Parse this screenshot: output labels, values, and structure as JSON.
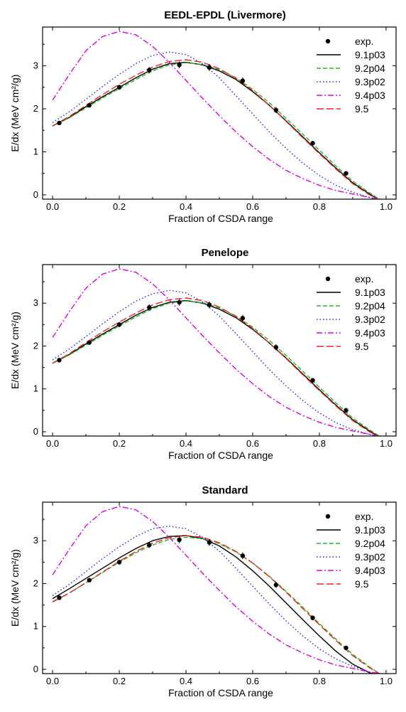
{
  "chart_data": [
    {
      "type": "line",
      "title": "EEDL-EPDL (Livermore)",
      "xlabel": "Fraction of CSDA range",
      "ylabel": "E/dx (MeV cm²/g)",
      "xlim": [
        -0.03,
        1.03
      ],
      "ylim": [
        -0.1,
        3.9
      ],
      "x_ticks": [
        "0.0",
        "0.2",
        "0.4",
        "0.6",
        "0.8",
        "1.0"
      ],
      "y_ticks": [
        "0",
        "1",
        "2",
        "3"
      ],
      "legend_position": "top-right",
      "experimental": {
        "name": "exp.",
        "x": [
          0.02,
          0.11,
          0.2,
          0.29,
          0.38,
          0.47,
          0.57,
          0.67,
          0.78,
          0.88
        ],
        "y": [
          1.67,
          2.08,
          2.5,
          2.9,
          3.02,
          2.96,
          2.65,
          1.97,
          1.2,
          0.5
        ],
        "err": [
          0.04,
          0.04,
          0.06,
          0.07,
          0.08,
          0.08,
          0.08,
          0.07,
          0.05,
          0.04
        ]
      },
      "series": [
        {
          "name": "9.1p03",
          "color": "#000000",
          "dash": "solid",
          "x": [
            0,
            0.05,
            0.1,
            0.15,
            0.2,
            0.25,
            0.3,
            0.35,
            0.4,
            0.45,
            0.5,
            0.55,
            0.6,
            0.65,
            0.7,
            0.75,
            0.8,
            0.85,
            0.9,
            0.95,
            0.98
          ],
          "y": [
            1.6,
            1.8,
            2.05,
            2.28,
            2.5,
            2.72,
            2.92,
            3.05,
            3.08,
            3.02,
            2.88,
            2.68,
            2.4,
            2.08,
            1.72,
            1.35,
            0.98,
            0.62,
            0.28,
            0.02,
            -0.12
          ]
        },
        {
          "name": "9.2p04",
          "color": "#22bb22",
          "dash": "dashed",
          "x": [
            0,
            0.05,
            0.1,
            0.15,
            0.2,
            0.25,
            0.3,
            0.35,
            0.4,
            0.45,
            0.5,
            0.55,
            0.6,
            0.65,
            0.7,
            0.75,
            0.8,
            0.85,
            0.9,
            0.95,
            0.98
          ],
          "y": [
            1.6,
            1.79,
            2.02,
            2.25,
            2.47,
            2.68,
            2.88,
            3.02,
            3.07,
            3.03,
            2.91,
            2.72,
            2.45,
            2.14,
            1.78,
            1.41,
            1.04,
            0.67,
            0.32,
            0.05,
            -0.1
          ]
        },
        {
          "name": "9.3p02",
          "color": "#2222dd",
          "dash": "dotted",
          "x": [
            0,
            0.05,
            0.1,
            0.15,
            0.2,
            0.25,
            0.3,
            0.35,
            0.4,
            0.45,
            0.5,
            0.55,
            0.6,
            0.65,
            0.7,
            0.75,
            0.8,
            0.85,
            0.9,
            0.95,
            0.98
          ],
          "y": [
            1.68,
            1.93,
            2.22,
            2.52,
            2.8,
            3.05,
            3.24,
            3.32,
            3.26,
            3.05,
            2.72,
            2.3,
            1.88,
            1.46,
            1.08,
            0.74,
            0.45,
            0.22,
            0.06,
            -0.06,
            -0.12
          ]
        },
        {
          "name": "9.4p03",
          "color": "#dd00dd",
          "dash": "dashdot",
          "x": [
            0,
            0.05,
            0.1,
            0.15,
            0.2,
            0.25,
            0.3,
            0.35,
            0.4,
            0.45,
            0.5,
            0.55,
            0.6,
            0.65,
            0.7,
            0.75,
            0.8,
            0.85,
            0.9,
            0.95,
            1.0
          ],
          "y": [
            2.2,
            2.8,
            3.35,
            3.68,
            3.8,
            3.72,
            3.45,
            3.08,
            2.66,
            2.24,
            1.84,
            1.46,
            1.12,
            0.82,
            0.57,
            0.38,
            0.22,
            0.1,
            0.02,
            -0.06,
            -0.12
          ]
        },
        {
          "name": "9.5",
          "color": "#ee2222",
          "dash": "longdash",
          "x": [
            0,
            0.05,
            0.1,
            0.15,
            0.2,
            0.25,
            0.3,
            0.35,
            0.4,
            0.45,
            0.5,
            0.55,
            0.6,
            0.65,
            0.7,
            0.75,
            0.8,
            0.85,
            0.9,
            0.95,
            0.98
          ],
          "y": [
            1.6,
            1.82,
            2.08,
            2.33,
            2.57,
            2.78,
            2.97,
            3.1,
            3.14,
            3.08,
            2.93,
            2.71,
            2.42,
            2.08,
            1.71,
            1.33,
            0.96,
            0.6,
            0.26,
            0.0,
            -0.12
          ]
        }
      ]
    },
    {
      "type": "line",
      "title": "Penelope",
      "xlabel": "Fraction of CSDA range",
      "ylabel": "E/dx (MeV cm²/g)",
      "xlim": [
        -0.03,
        1.03
      ],
      "ylim": [
        -0.1,
        3.9
      ],
      "x_ticks": [
        "0.0",
        "0.2",
        "0.4",
        "0.6",
        "0.8",
        "1.0"
      ],
      "y_ticks": [
        "0",
        "1",
        "2",
        "3"
      ],
      "legend_position": "top-right",
      "experimental": {
        "name": "exp.",
        "x": [
          0.02,
          0.11,
          0.2,
          0.29,
          0.38,
          0.47,
          0.57,
          0.67,
          0.78,
          0.88
        ],
        "y": [
          1.67,
          2.08,
          2.5,
          2.9,
          3.02,
          2.96,
          2.65,
          1.97,
          1.2,
          0.5
        ],
        "err": [
          0.04,
          0.04,
          0.06,
          0.07,
          0.08,
          0.08,
          0.08,
          0.07,
          0.05,
          0.04
        ]
      },
      "series": [
        {
          "name": "9.1p03",
          "color": "#000000",
          "dash": "solid",
          "x": [
            0,
            0.05,
            0.1,
            0.15,
            0.2,
            0.25,
            0.3,
            0.35,
            0.4,
            0.45,
            0.5,
            0.55,
            0.6,
            0.65,
            0.7,
            0.75,
            0.8,
            0.85,
            0.9,
            0.95,
            0.98
          ],
          "y": [
            1.6,
            1.8,
            2.05,
            2.28,
            2.5,
            2.72,
            2.9,
            3.02,
            3.06,
            3.0,
            2.86,
            2.66,
            2.39,
            2.07,
            1.72,
            1.35,
            0.98,
            0.62,
            0.28,
            0.02,
            -0.12
          ]
        },
        {
          "name": "9.2p04",
          "color": "#22bb22",
          "dash": "dashed",
          "x": [
            0,
            0.05,
            0.1,
            0.15,
            0.2,
            0.25,
            0.3,
            0.35,
            0.4,
            0.45,
            0.5,
            0.55,
            0.6,
            0.65,
            0.7,
            0.75,
            0.8,
            0.85,
            0.9,
            0.95,
            0.98
          ],
          "y": [
            1.6,
            1.79,
            2.02,
            2.25,
            2.47,
            2.68,
            2.87,
            3.0,
            3.05,
            3.01,
            2.89,
            2.7,
            2.44,
            2.13,
            1.78,
            1.41,
            1.04,
            0.67,
            0.32,
            0.05,
            -0.1
          ]
        },
        {
          "name": "9.3p02",
          "color": "#2222dd",
          "dash": "dotted",
          "x": [
            0,
            0.05,
            0.1,
            0.15,
            0.2,
            0.25,
            0.3,
            0.35,
            0.4,
            0.45,
            0.5,
            0.55,
            0.6,
            0.65,
            0.7,
            0.75,
            0.8,
            0.85,
            0.9,
            0.95,
            0.98
          ],
          "y": [
            1.68,
            1.93,
            2.22,
            2.52,
            2.8,
            3.05,
            3.22,
            3.3,
            3.24,
            3.03,
            2.7,
            2.29,
            1.87,
            1.45,
            1.07,
            0.73,
            0.44,
            0.21,
            0.05,
            -0.06,
            -0.12
          ]
        },
        {
          "name": "9.4p03",
          "color": "#dd00dd",
          "dash": "dashdot",
          "x": [
            0,
            0.05,
            0.1,
            0.15,
            0.2,
            0.25,
            0.3,
            0.35,
            0.4,
            0.45,
            0.5,
            0.55,
            0.6,
            0.65,
            0.7,
            0.75,
            0.8,
            0.85,
            0.9,
            0.95,
            1.0
          ],
          "y": [
            2.2,
            2.8,
            3.35,
            3.68,
            3.8,
            3.72,
            3.45,
            3.08,
            2.66,
            2.24,
            1.84,
            1.46,
            1.12,
            0.82,
            0.57,
            0.38,
            0.22,
            0.1,
            0.02,
            -0.06,
            -0.12
          ]
        },
        {
          "name": "9.5",
          "color": "#ee2222",
          "dash": "longdash",
          "x": [
            0,
            0.05,
            0.1,
            0.15,
            0.2,
            0.25,
            0.3,
            0.35,
            0.4,
            0.45,
            0.5,
            0.55,
            0.6,
            0.65,
            0.7,
            0.75,
            0.8,
            0.85,
            0.9,
            0.95,
            0.98
          ],
          "y": [
            1.6,
            1.82,
            2.08,
            2.33,
            2.56,
            2.77,
            2.96,
            3.08,
            3.12,
            3.06,
            2.91,
            2.69,
            2.41,
            2.07,
            1.71,
            1.33,
            0.96,
            0.6,
            0.26,
            0.0,
            -0.12
          ]
        }
      ]
    },
    {
      "type": "line",
      "title": "Standard",
      "xlabel": "Fraction of CSDA range",
      "ylabel": "E/dx (MeV cm²/g)",
      "xlim": [
        -0.03,
        1.03
      ],
      "ylim": [
        -0.1,
        3.9
      ],
      "x_ticks": [
        "0.0",
        "0.2",
        "0.4",
        "0.6",
        "0.8",
        "1.0"
      ],
      "y_ticks": [
        "0",
        "1",
        "2",
        "3"
      ],
      "legend_position": "top-right",
      "experimental": {
        "name": "exp.",
        "x": [
          0.02,
          0.11,
          0.2,
          0.29,
          0.38,
          0.47,
          0.57,
          0.67,
          0.78,
          0.88
        ],
        "y": [
          1.67,
          2.08,
          2.5,
          2.9,
          3.02,
          2.96,
          2.65,
          1.97,
          1.2,
          0.5
        ],
        "err": [
          0.04,
          0.04,
          0.06,
          0.07,
          0.08,
          0.08,
          0.08,
          0.07,
          0.05,
          0.04
        ]
      },
      "series": [
        {
          "name": "9.1p03",
          "color": "#000000",
          "dash": "solid",
          "x": [
            0,
            0.05,
            0.1,
            0.15,
            0.2,
            0.25,
            0.3,
            0.35,
            0.4,
            0.45,
            0.5,
            0.55,
            0.6,
            0.65,
            0.7,
            0.75,
            0.8,
            0.85,
            0.9,
            0.95,
            0.97
          ],
          "y": [
            1.65,
            1.88,
            2.12,
            2.36,
            2.6,
            2.82,
            3.0,
            3.1,
            3.12,
            3.05,
            2.88,
            2.62,
            2.3,
            1.94,
            1.55,
            1.16,
            0.78,
            0.42,
            0.12,
            -0.08,
            -0.12
          ]
        },
        {
          "name": "9.2p04",
          "color": "#22bb22",
          "dash": "dashed",
          "x": [
            0,
            0.05,
            0.1,
            0.15,
            0.2,
            0.25,
            0.3,
            0.35,
            0.4,
            0.45,
            0.5,
            0.55,
            0.6,
            0.65,
            0.7,
            0.75,
            0.8,
            0.85,
            0.9,
            0.95,
            0.98
          ],
          "y": [
            1.58,
            1.78,
            2.02,
            2.26,
            2.5,
            2.72,
            2.9,
            3.03,
            3.08,
            3.05,
            2.93,
            2.74,
            2.48,
            2.17,
            1.82,
            1.45,
            1.07,
            0.7,
            0.35,
            0.06,
            -0.1
          ]
        },
        {
          "name": "9.3p02",
          "color": "#2222dd",
          "dash": "dotted",
          "x": [
            0,
            0.05,
            0.1,
            0.15,
            0.2,
            0.25,
            0.3,
            0.35,
            0.4,
            0.45,
            0.5,
            0.55,
            0.6,
            0.65,
            0.7,
            0.75,
            0.8,
            0.85,
            0.9,
            0.95,
            0.98
          ],
          "y": [
            1.72,
            1.98,
            2.28,
            2.58,
            2.86,
            3.1,
            3.28,
            3.34,
            3.28,
            3.08,
            2.76,
            2.36,
            1.94,
            1.52,
            1.13,
            0.78,
            0.48,
            0.24,
            0.07,
            -0.06,
            -0.12
          ]
        },
        {
          "name": "9.4p03",
          "color": "#dd00dd",
          "dash": "dashdot",
          "x": [
            0,
            0.05,
            0.1,
            0.15,
            0.2,
            0.25,
            0.3,
            0.35,
            0.4,
            0.45,
            0.5,
            0.55,
            0.6,
            0.65,
            0.7,
            0.75,
            0.8,
            0.85,
            0.9,
            0.95,
            1.0
          ],
          "y": [
            2.2,
            2.8,
            3.35,
            3.68,
            3.8,
            3.72,
            3.45,
            3.08,
            2.66,
            2.24,
            1.84,
            1.46,
            1.12,
            0.82,
            0.57,
            0.38,
            0.22,
            0.1,
            0.02,
            -0.06,
            -0.12
          ]
        },
        {
          "name": "9.5",
          "color": "#ee2222",
          "dash": "longdash",
          "x": [
            0,
            0.05,
            0.1,
            0.15,
            0.2,
            0.25,
            0.3,
            0.35,
            0.4,
            0.45,
            0.5,
            0.55,
            0.6,
            0.65,
            0.7,
            0.75,
            0.8,
            0.85,
            0.9,
            0.95,
            0.98
          ],
          "y": [
            1.57,
            1.78,
            2.02,
            2.27,
            2.52,
            2.75,
            2.94,
            3.07,
            3.12,
            3.08,
            2.95,
            2.75,
            2.48,
            2.16,
            1.8,
            1.42,
            1.04,
            0.67,
            0.32,
            0.04,
            -0.1
          ]
        }
      ]
    }
  ]
}
